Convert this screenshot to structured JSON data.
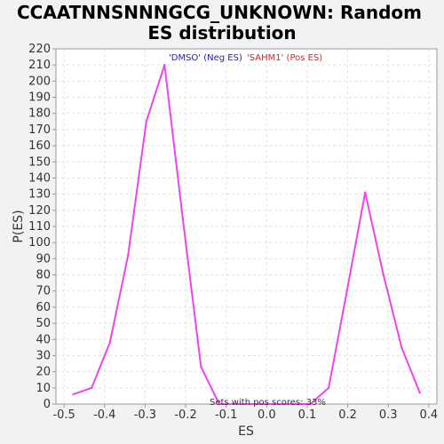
{
  "chart_data": {
    "type": "line",
    "title_lines": [
      "CCAATNNSNNNGCG_UNKNOWN: Random",
      "ES distribution"
    ],
    "xlabel": "ES",
    "ylabel": "P(ES)",
    "xlim": [
      -0.52,
      0.42
    ],
    "ylim": [
      0,
      220
    ],
    "x_ticks": [
      -0.5,
      -0.4,
      -0.3,
      -0.2,
      -0.1,
      0.0,
      0.1,
      0.2,
      0.3,
      0.4
    ],
    "x_tick_labels": [
      "-0.5",
      "-0.4",
      "-0.3",
      "-0.2",
      "-0.1",
      "0.0",
      "0.1",
      "0.2",
      "0.3",
      "0.4"
    ],
    "y_ticks": [
      0,
      10,
      20,
      30,
      40,
      50,
      60,
      70,
      80,
      90,
      100,
      110,
      120,
      130,
      140,
      150,
      160,
      170,
      180,
      190,
      200,
      210,
      220
    ],
    "grid": true,
    "legend": {
      "placement": "top-center",
      "entries": [
        {
          "label": "'DMSO' (Neg ES)",
          "color": "#2222bb"
        },
        {
          "label": "'SAHM1' (Pos ES)",
          "color": "#dd2222"
        }
      ]
    },
    "annotation": "Sets with pos scores: 33%",
    "series": [
      {
        "color": "#ee44ee",
        "x": [
          -0.477,
          -0.432,
          -0.387,
          -0.342,
          -0.297,
          -0.252,
          -0.207,
          -0.162,
          -0.117,
          -0.072,
          -0.027,
          0.018,
          0.063,
          0.108,
          0.153,
          0.198,
          0.243,
          0.288,
          0.333,
          0.378
        ],
        "y": [
          6,
          10,
          38,
          92,
          175,
          210,
          115,
          23,
          0,
          0,
          0,
          0,
          0,
          0,
          10,
          70,
          131,
          80,
          35,
          7
        ]
      }
    ]
  }
}
